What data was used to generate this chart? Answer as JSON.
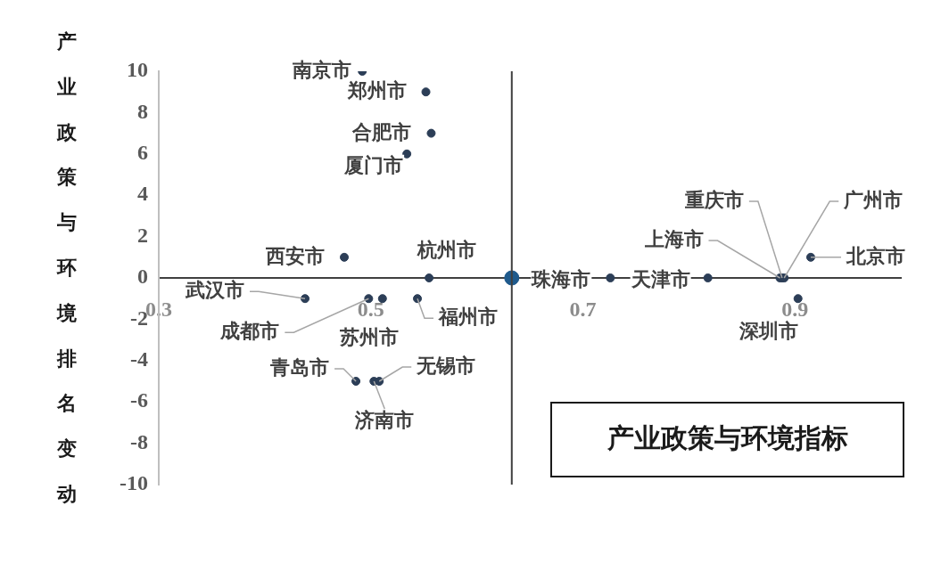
{
  "chart_data": {
    "type": "scatter",
    "title": "产业政策与环境指标",
    "ylabel": "产业政策与环境排名变动",
    "xlim": [
      0.3,
      1.0
    ],
    "xticks": [
      0.3,
      0.5,
      0.7,
      0.9
    ],
    "ylim": [
      -10,
      10
    ],
    "yticks": [
      -10,
      -8,
      -6,
      -4,
      -2,
      0,
      2,
      4,
      6,
      8,
      10
    ],
    "marker": "circle",
    "series": [
      {
        "color": "#2c3e57",
        "x": [
          0.492,
          0.552,
          0.557,
          0.534,
          0.475,
          0.555,
          0.438,
          0.498,
          0.511,
          0.544,
          0.486,
          0.503,
          0.508,
          0.726,
          0.818,
          0.886,
          0.888,
          0.89,
          0.915,
          0.903
        ],
        "values": [
          10,
          9,
          7,
          6,
          1,
          0,
          -1,
          -1,
          -1,
          -1,
          -5,
          -5,
          -5,
          0,
          0,
          0,
          0,
          0,
          1,
          -1
        ],
        "value_labels": [
          "南京市",
          "郑州市",
          "合肥市",
          "厦门市",
          "西安市",
          "杭州市",
          "武汉市",
          "成都市",
          "苏州市",
          "福州市",
          "青岛市",
          "济南市",
          "无锡市",
          "珠海市",
          "天津市",
          "上海市",
          "重庆市",
          "广州市",
          "北京市",
          "深圳市"
        ]
      },
      {
        "color": "#1f5a8c",
        "x": [
          0.633
        ],
        "values": [
          0
        ]
      }
    ],
    "ref_lines": [
      {
        "axis": "x",
        "value": 0.633,
        "color": "#404040"
      }
    ]
  }
}
